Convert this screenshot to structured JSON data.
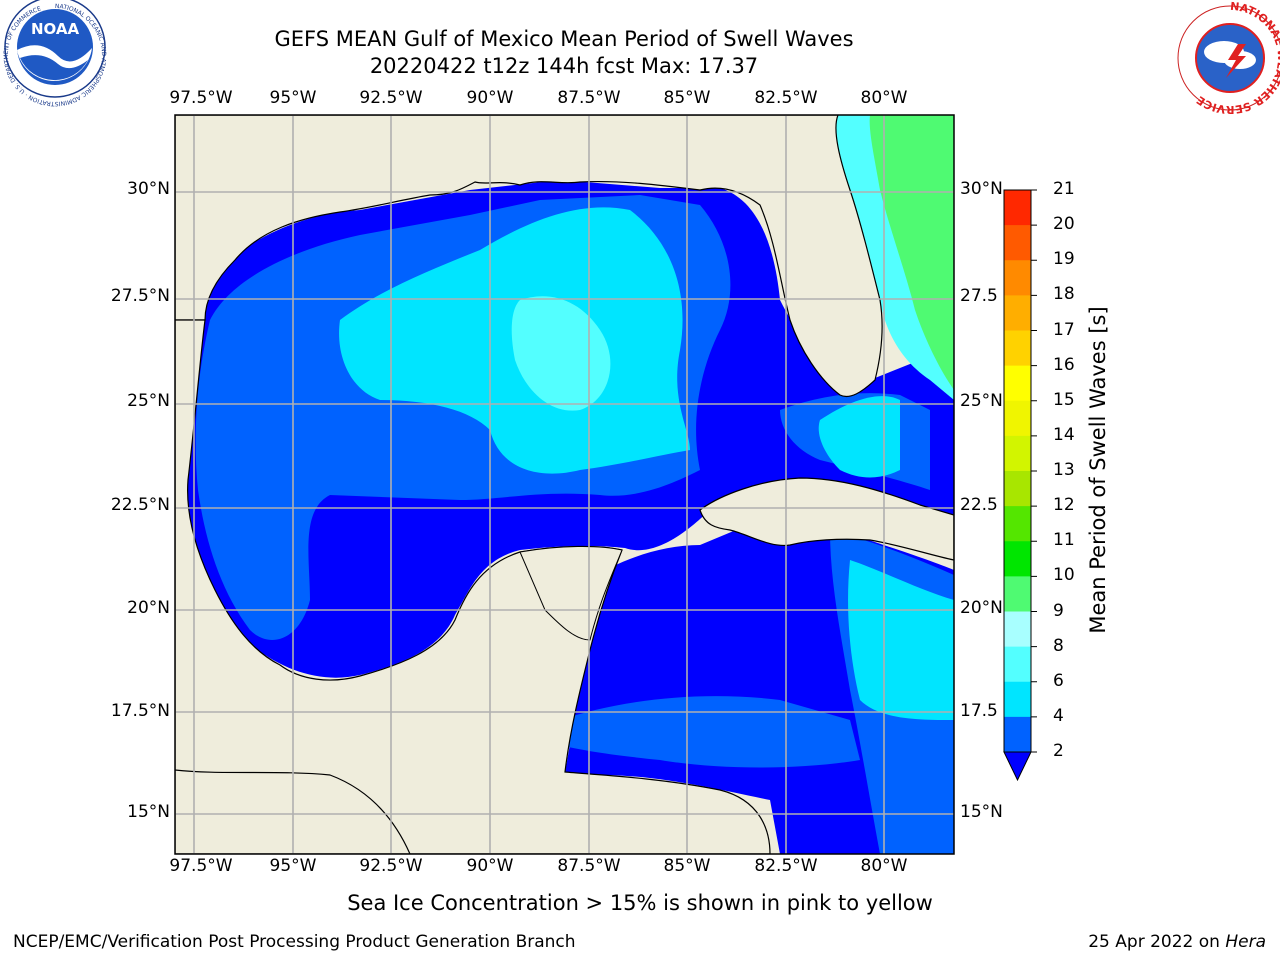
{
  "header": {
    "title_line1": "GEFS MEAN Gulf of Mexico Mean Period of Swell Waves",
    "title_line2": "20220422 t12z 144h fcst   Max: 17.37"
  },
  "logos": {
    "noaa_text": "NOAA",
    "noaa_ring_text": "NATIONAL OCEANIC AND ATMOSPHERIC ADMINISTRATION · U.S. DEPARTMENT OF COMMERCE",
    "nws_ring_text": "NATIONAL WEATHER SERVICE"
  },
  "map": {
    "lon_ticks": [
      "97.5°W",
      "95°W",
      "92.5°W",
      "90°W",
      "87.5°W",
      "85°W",
      "82.5°W",
      "80°W"
    ],
    "lat_ticks_left": [
      "30°N",
      "27.5°N",
      "25°N",
      "22.5°N",
      "20°N",
      "17.5°N",
      "15°N"
    ],
    "lat_ticks_right": [
      "30°N",
      "27.5",
      "25°N",
      "22.5",
      "20°N",
      "17.5",
      "15°N"
    ],
    "colors": {
      "land": "#efeddc",
      "grid": "#b0b0b0"
    }
  },
  "colorbar": {
    "label": "Mean Period of Swell Waves [s]",
    "ticks": [
      "2",
      "4",
      "6",
      "8",
      "9",
      "10",
      "11",
      "12",
      "13",
      "14",
      "15",
      "16",
      "17",
      "18",
      "19",
      "20",
      "21"
    ],
    "colors": [
      "#0062ff",
      "#00e5ff",
      "#53ffff",
      "#a8ffff",
      "#4ffa72",
      "#00e600",
      "#54e600",
      "#a8e600",
      "#d2f500",
      "#f0f500",
      "#ffff00",
      "#ffd200",
      "#ffae00",
      "#ff8a00",
      "#ff5a00",
      "#ff2800",
      "#ff0000"
    ],
    "under_color": "#0000ff"
  },
  "caption": "Sea Ice Concentration > 15% is shown in pink to yellow",
  "footer": {
    "left": "NCEP/EMC/Verification Post Processing Product Generation Branch",
    "right_prefix": "25 Apr 2022 on ",
    "right_host": "Hera"
  }
}
